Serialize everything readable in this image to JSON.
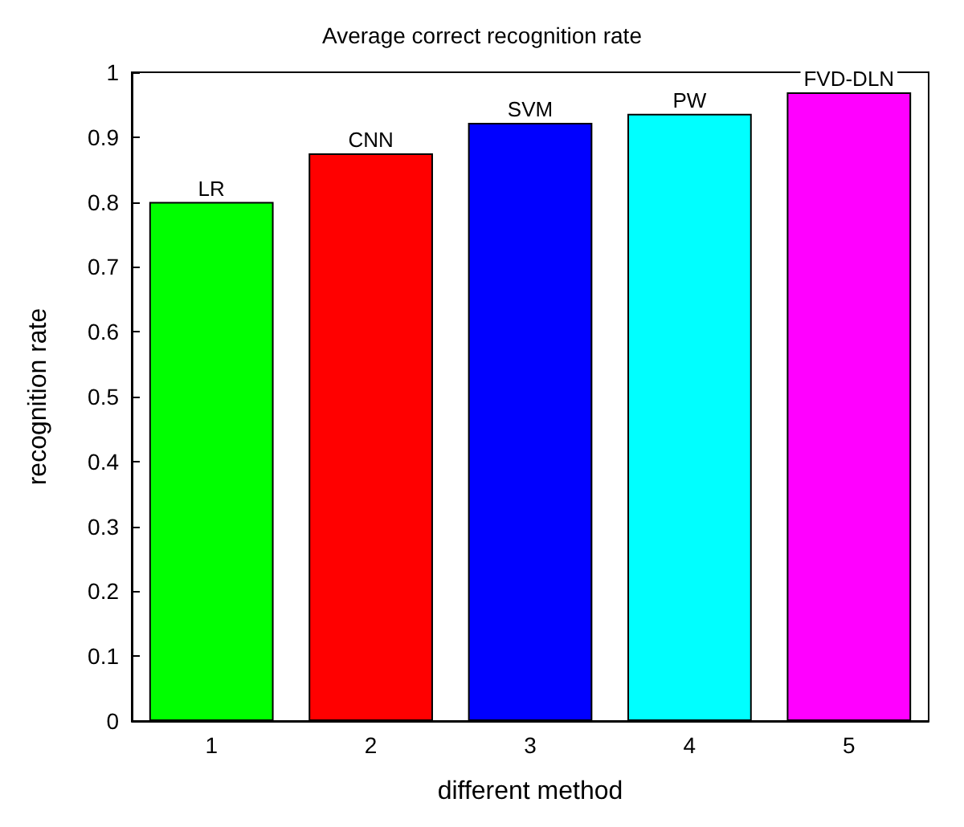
{
  "chart_data": {
    "type": "bar",
    "title": "Average correct recognition rate",
    "xlabel": "different method",
    "ylabel": "recognition rate",
    "categories": [
      "1",
      "2",
      "3",
      "4",
      "5"
    ],
    "values": [
      0.8,
      0.875,
      0.922,
      0.936,
      0.969
    ],
    "colors": [
      "#00ff00",
      "#ff0000",
      "#0000ff",
      "#00ffff",
      "#ff00ff"
    ],
    "annotations": [
      {
        "text": "LR",
        "x": "1",
        "y": 0.8
      },
      {
        "text": "CNN",
        "x": "2",
        "y": 0.875
      },
      {
        "text": "SVM",
        "x": "3",
        "y": 0.922
      },
      {
        "text": "PW",
        "x": "4",
        "y": 0.936
      },
      {
        "text": "FVD-DLN",
        "x": "5",
        "y": 0.969
      }
    ],
    "ylim": [
      0,
      1
    ],
    "yticks": [
      0,
      0.1,
      0.2,
      0.3,
      0.4,
      0.5,
      0.6,
      0.7,
      0.8,
      0.9,
      1
    ],
    "grid": false
  }
}
